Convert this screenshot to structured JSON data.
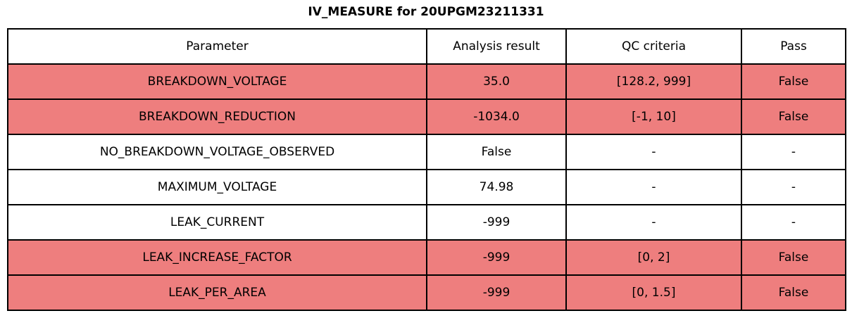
{
  "title": "IV_MEASURE for 20UPGM23211331",
  "chart_data": {
    "type": "table",
    "title": "IV_MEASURE for 20UPGM23211331",
    "columns": [
      "Parameter",
      "Analysis result",
      "QC criteria",
      "Pass"
    ],
    "rows": [
      {
        "parameter": "BREAKDOWN_VOLTAGE",
        "analysis_result": "35.0",
        "qc_criteria": "[128.2, 999]",
        "pass": "False",
        "highlighted": true
      },
      {
        "parameter": "BREAKDOWN_REDUCTION",
        "analysis_result": "-1034.0",
        "qc_criteria": "[-1, 10]",
        "pass": "False",
        "highlighted": true
      },
      {
        "parameter": "NO_BREAKDOWN_VOLTAGE_OBSERVED",
        "analysis_result": "False",
        "qc_criteria": "-",
        "pass": "-",
        "highlighted": false
      },
      {
        "parameter": "MAXIMUM_VOLTAGE",
        "analysis_result": "74.98",
        "qc_criteria": "-",
        "pass": "-",
        "highlighted": false
      },
      {
        "parameter": "LEAK_CURRENT",
        "analysis_result": "-999",
        "qc_criteria": "-",
        "pass": "-",
        "highlighted": false
      },
      {
        "parameter": "LEAK_INCREASE_FACTOR",
        "analysis_result": "-999",
        "qc_criteria": "[0, 2]",
        "pass": "False",
        "highlighted": true
      },
      {
        "parameter": "LEAK_PER_AREA",
        "analysis_result": "-999",
        "qc_criteria": "[0, 1.5]",
        "pass": "False",
        "highlighted": true
      }
    ],
    "colors": {
      "fail_row_bg": "#ee7e7e",
      "normal_row_bg": "#ffffff",
      "border": "#000000",
      "text": "#000000"
    }
  }
}
